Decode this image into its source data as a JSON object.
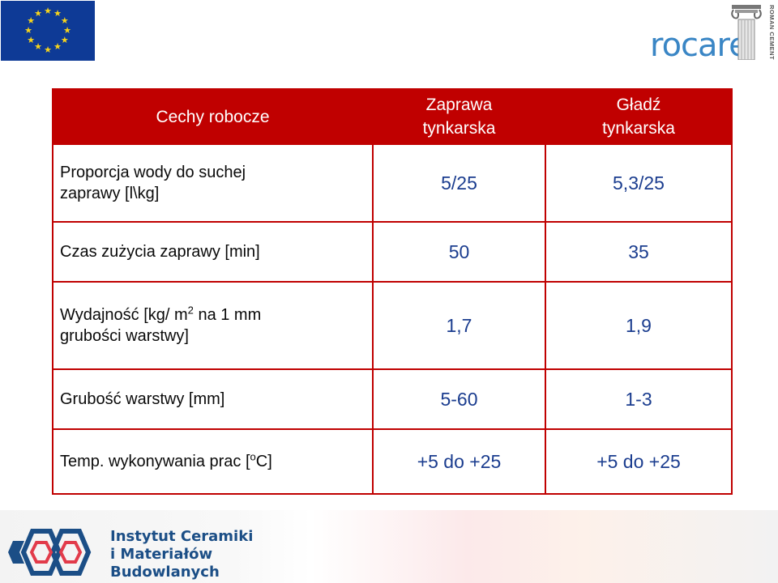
{
  "logos": {
    "eu_flag": "eu-flag",
    "rocare": {
      "word": "rocare",
      "sub": "ROMAN CEMENT",
      "color": "#3a86c5"
    },
    "institute": {
      "lines": [
        "Instytut Ceramiki",
        "i Materiałów",
        "Budowlanych"
      ],
      "color": "#1b4e86"
    }
  },
  "table": {
    "header": {
      "features": "Cechy robocze",
      "col1": [
        "Zaprawa",
        "tynkarska"
      ],
      "col2": [
        "Gładź",
        "tynkarska"
      ]
    },
    "rows": [
      {
        "label_lines": [
          "Proporcja wody do suchej",
          "zaprawy [l\\kg]"
        ],
        "v1": "5/25",
        "v2": "5,3/25"
      },
      {
        "label": "Czas zużycia zaprawy [min]",
        "v1": "50",
        "v2": "35"
      },
      {
        "label_a": "Wydajność [kg/ m",
        "label_sup": "2",
        "label_b": " na 1 mm",
        "label_c": "grubości warstwy]",
        "v1": "1,7",
        "v2": "1,9"
      },
      {
        "label": "Grubość warstwy [mm]",
        "v1": "5-60",
        "v2": "1-3"
      },
      {
        "label_a": "Temp. wykonywania prac [",
        "label_sup": "o",
        "label_b": "C]",
        "v1": "+5 do +25",
        "v2": "+5 do +25"
      }
    ],
    "colors": {
      "border": "#c00000",
      "header_bg": "#c00000",
      "value_text": "#1b3d8f"
    }
  }
}
